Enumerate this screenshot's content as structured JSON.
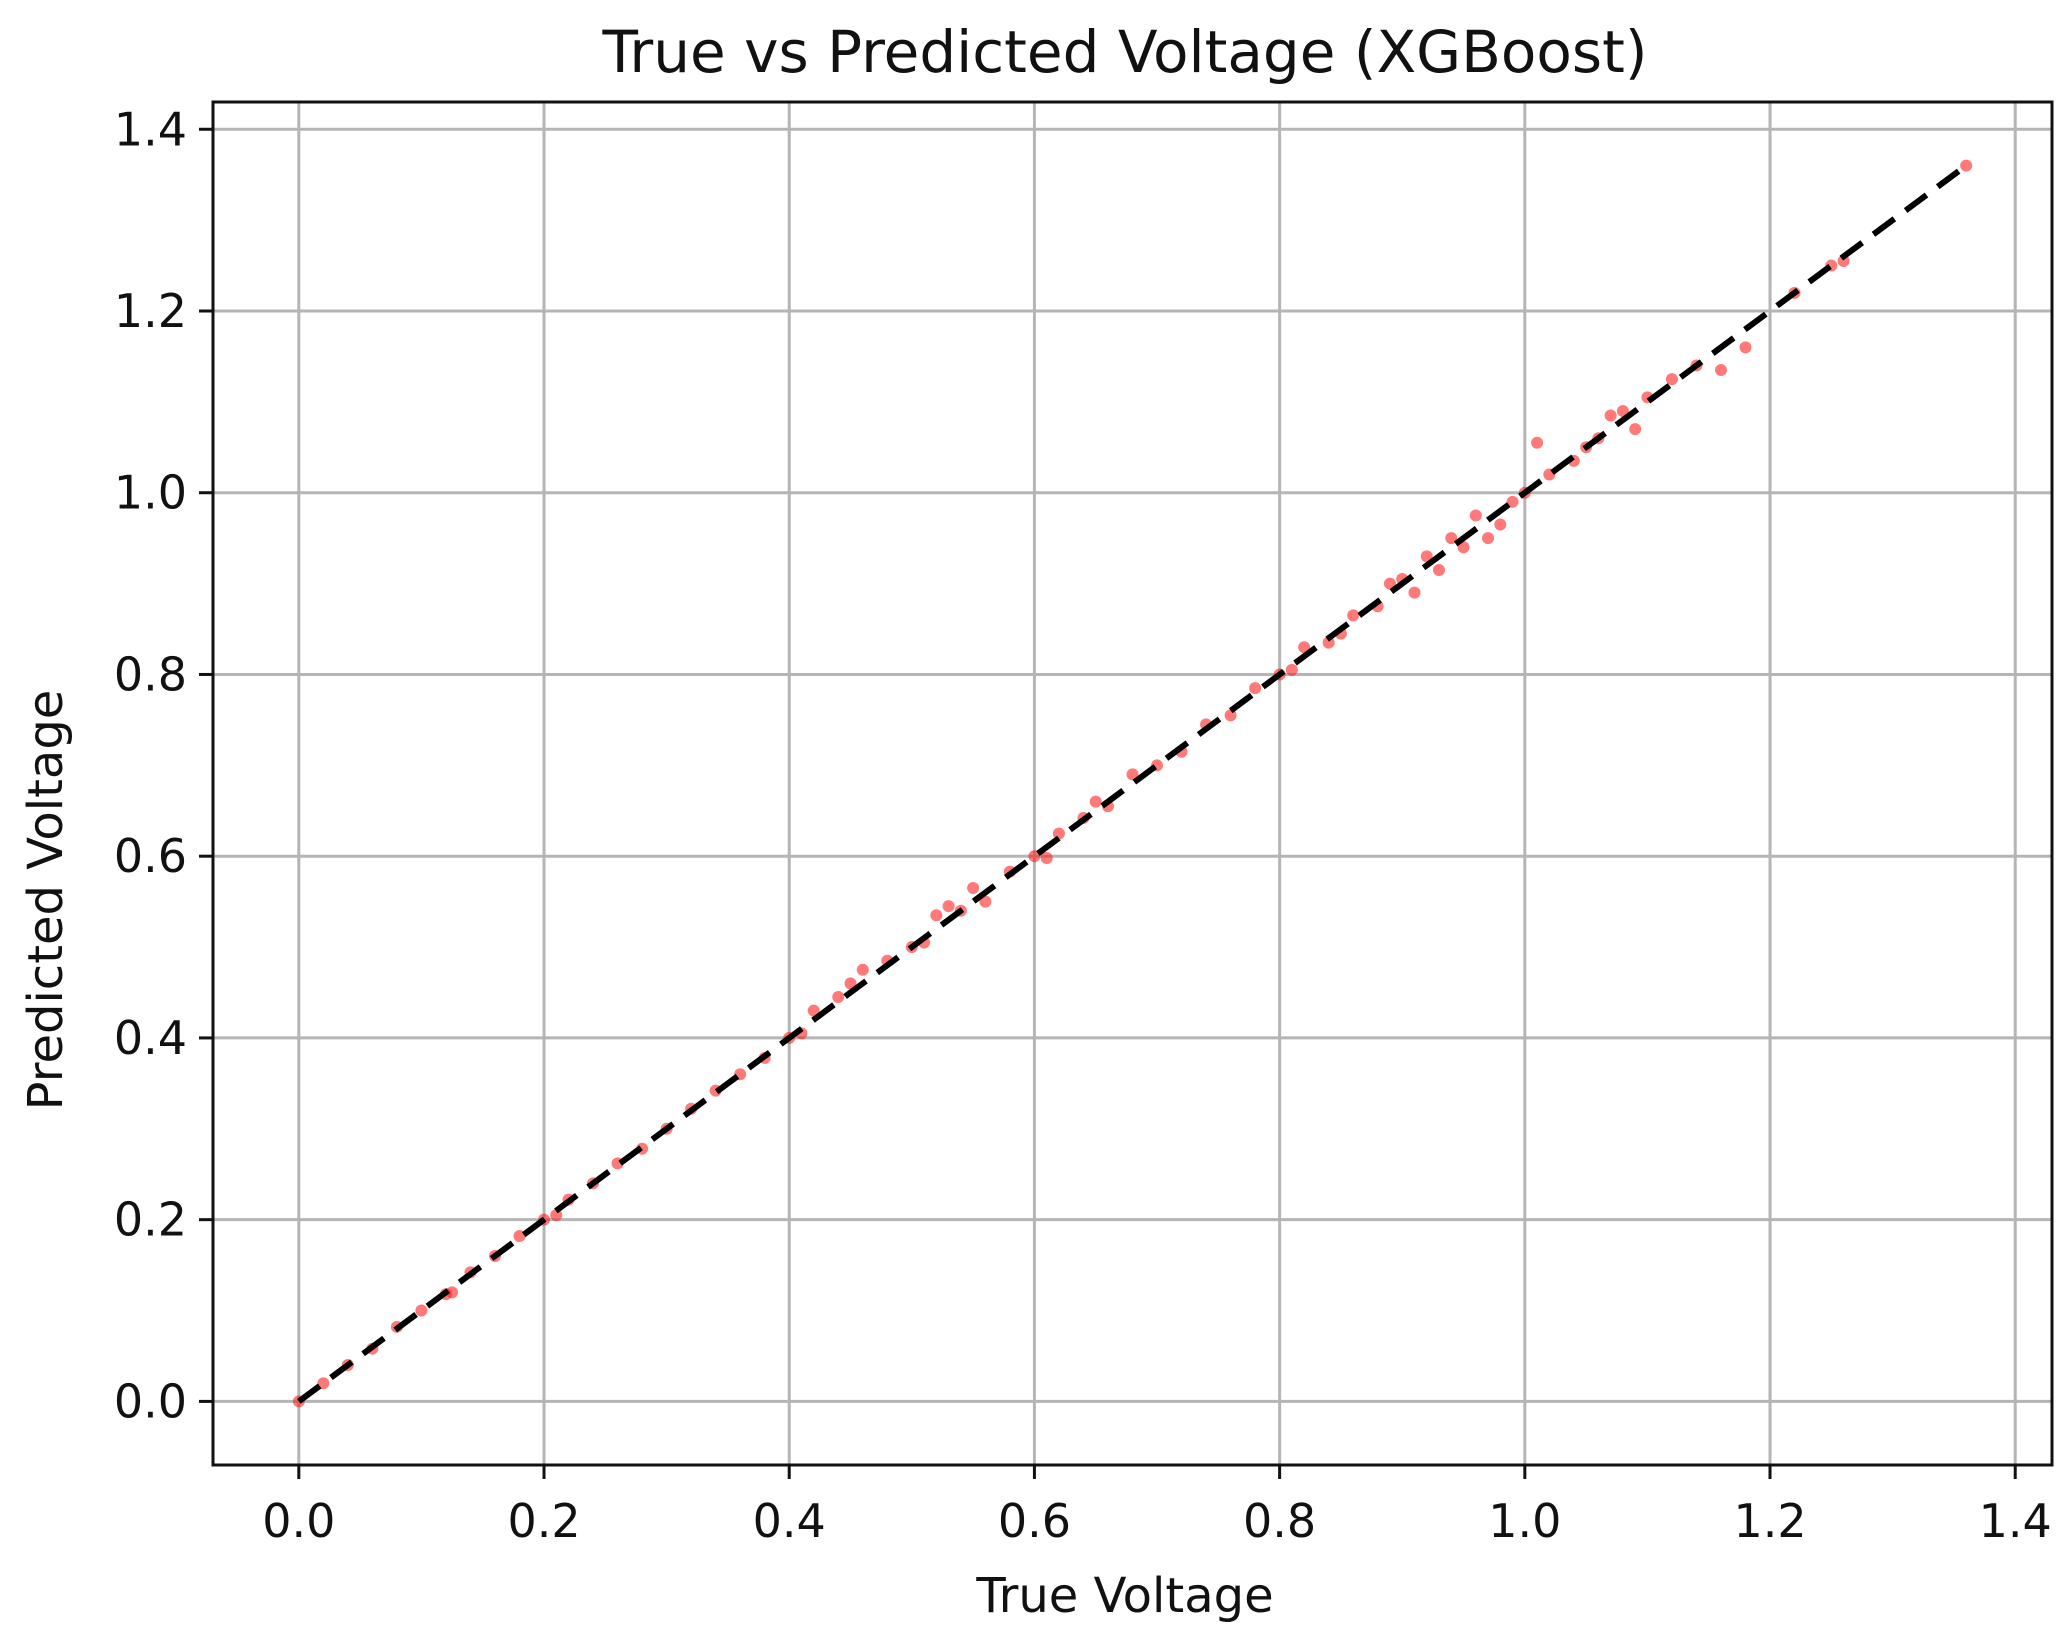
{
  "chart_data": {
    "type": "scatter",
    "title": "True vs Predicted Voltage (XGBoost)",
    "xlabel": "True Voltage",
    "ylabel": "Predicted Voltage",
    "xlim": [
      -0.07,
      1.43
    ],
    "ylim": [
      -0.07,
      1.43
    ],
    "x_ticks": [
      "0.0",
      "0.2",
      "0.4",
      "0.6",
      "0.8",
      "1.0",
      "1.2",
      "1.4"
    ],
    "y_ticks": [
      "0.0",
      "0.2",
      "0.4",
      "0.6",
      "0.8",
      "1.0",
      "1.2",
      "1.4"
    ],
    "x_tick_values": [
      0.0,
      0.2,
      0.4,
      0.6,
      0.8,
      1.0,
      1.2,
      1.4
    ],
    "y_tick_values": [
      0.0,
      0.2,
      0.4,
      0.6,
      0.8,
      1.0,
      1.2,
      1.4
    ],
    "grid": true,
    "colors": {
      "points": "#ff2020",
      "reference_line": "#000000",
      "grid": "#b5b5b5"
    },
    "reference_line": {
      "style": "dashed",
      "from": [
        0.0,
        0.0
      ],
      "to": [
        1.36,
        1.36
      ]
    },
    "points": [
      [
        0.0,
        0.0
      ],
      [
        0.02,
        0.02
      ],
      [
        0.04,
        0.04
      ],
      [
        0.06,
        0.058
      ],
      [
        0.08,
        0.082
      ],
      [
        0.1,
        0.1
      ],
      [
        0.12,
        0.118
      ],
      [
        0.125,
        0.12
      ],
      [
        0.14,
        0.142
      ],
      [
        0.16,
        0.16
      ],
      [
        0.18,
        0.182
      ],
      [
        0.2,
        0.2
      ],
      [
        0.21,
        0.205
      ],
      [
        0.22,
        0.222
      ],
      [
        0.24,
        0.24
      ],
      [
        0.26,
        0.262
      ],
      [
        0.28,
        0.278
      ],
      [
        0.3,
        0.3
      ],
      [
        0.32,
        0.322
      ],
      [
        0.34,
        0.342
      ],
      [
        0.36,
        0.36
      ],
      [
        0.38,
        0.378
      ],
      [
        0.4,
        0.4
      ],
      [
        0.41,
        0.405
      ],
      [
        0.42,
        0.43
      ],
      [
        0.44,
        0.445
      ],
      [
        0.45,
        0.46
      ],
      [
        0.46,
        0.475
      ],
      [
        0.48,
        0.485
      ],
      [
        0.5,
        0.5
      ],
      [
        0.51,
        0.505
      ],
      [
        0.52,
        0.535
      ],
      [
        0.53,
        0.545
      ],
      [
        0.54,
        0.54
      ],
      [
        0.55,
        0.565
      ],
      [
        0.56,
        0.55
      ],
      [
        0.58,
        0.583
      ],
      [
        0.6,
        0.6
      ],
      [
        0.61,
        0.598
      ],
      [
        0.62,
        0.625
      ],
      [
        0.64,
        0.642
      ],
      [
        0.65,
        0.66
      ],
      [
        0.66,
        0.655
      ],
      [
        0.68,
        0.69
      ],
      [
        0.7,
        0.7
      ],
      [
        0.72,
        0.715
      ],
      [
        0.74,
        0.745
      ],
      [
        0.76,
        0.755
      ],
      [
        0.78,
        0.785
      ],
      [
        0.8,
        0.8
      ],
      [
        0.81,
        0.805
      ],
      [
        0.82,
        0.83
      ],
      [
        0.84,
        0.835
      ],
      [
        0.85,
        0.845
      ],
      [
        0.86,
        0.865
      ],
      [
        0.88,
        0.875
      ],
      [
        0.89,
        0.9
      ],
      [
        0.9,
        0.905
      ],
      [
        0.91,
        0.89
      ],
      [
        0.92,
        0.93
      ],
      [
        0.93,
        0.915
      ],
      [
        0.94,
        0.95
      ],
      [
        0.95,
        0.94
      ],
      [
        0.96,
        0.975
      ],
      [
        0.97,
        0.95
      ],
      [
        0.98,
        0.965
      ],
      [
        0.99,
        0.99
      ],
      [
        1.0,
        1.0
      ],
      [
        1.01,
        1.055
      ],
      [
        1.02,
        1.02
      ],
      [
        1.04,
        1.035
      ],
      [
        1.05,
        1.05
      ],
      [
        1.06,
        1.06
      ],
      [
        1.07,
        1.085
      ],
      [
        1.08,
        1.09
      ],
      [
        1.09,
        1.07
      ],
      [
        1.1,
        1.105
      ],
      [
        1.12,
        1.125
      ],
      [
        1.14,
        1.14
      ],
      [
        1.16,
        1.135
      ],
      [
        1.18,
        1.16
      ],
      [
        1.22,
        1.22
      ],
      [
        1.25,
        1.25
      ],
      [
        1.26,
        1.255
      ],
      [
        1.36,
        1.36
      ]
    ]
  }
}
